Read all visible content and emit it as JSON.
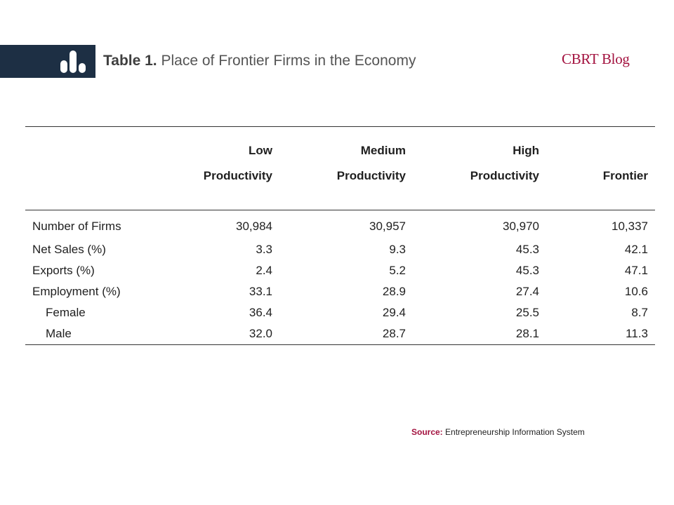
{
  "header": {
    "logo_icon": "bar-chart-icon",
    "title_label": "Table 1.",
    "title_text": "Place of Frontier Firms in the Economy",
    "brand": "CBRT Blog",
    "brand_color": "#a3123f",
    "logo_bg_color": "#1d2f44"
  },
  "table": {
    "columns": [
      {
        "line1": "",
        "line2": ""
      },
      {
        "line1": "Low",
        "line2": "Productivity"
      },
      {
        "line1": "Medium",
        "line2": "Productivity"
      },
      {
        "line1": "High",
        "line2": "Productivity"
      },
      {
        "line1": "",
        "line2": "Frontier"
      }
    ],
    "rows": [
      {
        "label": "Number of Firms",
        "values": [
          "30,984",
          "30,957",
          "30,970",
          "10,337"
        ]
      },
      {
        "label": "Net Sales (%)",
        "values": [
          "3.3",
          "9.3",
          "45.3",
          "42.1"
        ]
      },
      {
        "label": "Exports (%)",
        "values": [
          "2.4",
          "5.2",
          "45.3",
          "47.1"
        ]
      },
      {
        "label": "Employment (%)",
        "values": [
          "33.1",
          "28.9",
          "27.4",
          "10.6"
        ]
      },
      {
        "label": "Female",
        "values": [
          "36.4",
          "29.4",
          "25.5",
          "8.7"
        ]
      },
      {
        "label": "Male",
        "values": [
          "32.0",
          "28.7",
          "28.1",
          "11.3"
        ]
      }
    ]
  },
  "footer": {
    "source_label": "Source:",
    "source_text": "Entrepreneurship Information System"
  }
}
